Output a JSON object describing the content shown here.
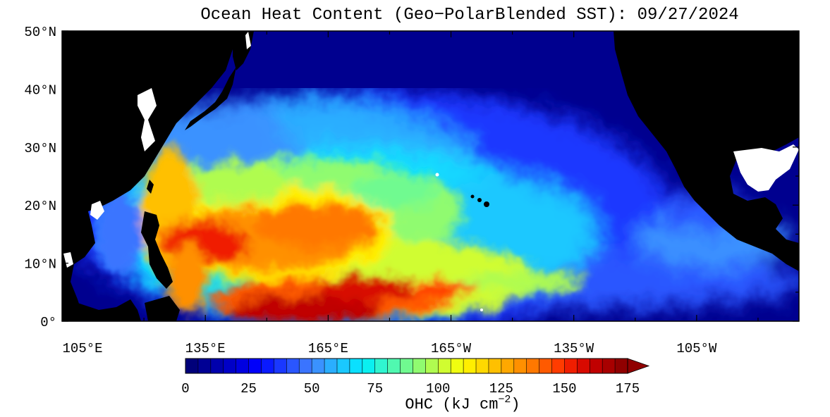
{
  "map": {
    "title": "Ocean Heat Content (Geo−PolarBlended SST): 09/27/2024",
    "lat_labels": [
      "50°N",
      "40°N",
      "30°N",
      "20°N",
      "10°N",
      "0°"
    ],
    "lon_labels": [
      "105°E",
      "135°E",
      "165°E",
      "165°W",
      "135°W",
      "105°W"
    ],
    "extent": {
      "lon_min": 100,
      "lon_max": 280,
      "lat_min": 0,
      "lat_max": 50
    }
  },
  "colorbar": {
    "title_prefix": "OHC (kJ cm",
    "title_exp": "−2",
    "title_suffix": ")",
    "tick_labels": [
      "0",
      "25",
      "50",
      "75",
      "100",
      "125",
      "150",
      "175"
    ],
    "min": 0,
    "max": 175,
    "step": 5,
    "colors": [
      "#00007a",
      "#000094",
      "#0000ad",
      "#0000c7",
      "#0000e0",
      "#0000fa",
      "#0a1aff",
      "#1a38ff",
      "#2a56ff",
      "#3a74ff",
      "#3a92ff",
      "#2aaeff",
      "#1ac8ff",
      "#0ae0ff",
      "#0af0f0",
      "#30f5d0",
      "#50f8b0",
      "#70fa90",
      "#90fb70",
      "#b0fc50",
      "#d0fd30",
      "#f0fd10",
      "#ffee00",
      "#ffd800",
      "#ffc000",
      "#ffa800",
      "#ff9000",
      "#ff7800",
      "#ff5a00",
      "#ff3c00",
      "#f01e00",
      "#d80a00",
      "#c00000",
      "#a80000",
      "#900000"
    ]
  },
  "colors": {
    "land": "#000000",
    "ice": "#ffffff",
    "ocean_base": "#000094"
  }
}
